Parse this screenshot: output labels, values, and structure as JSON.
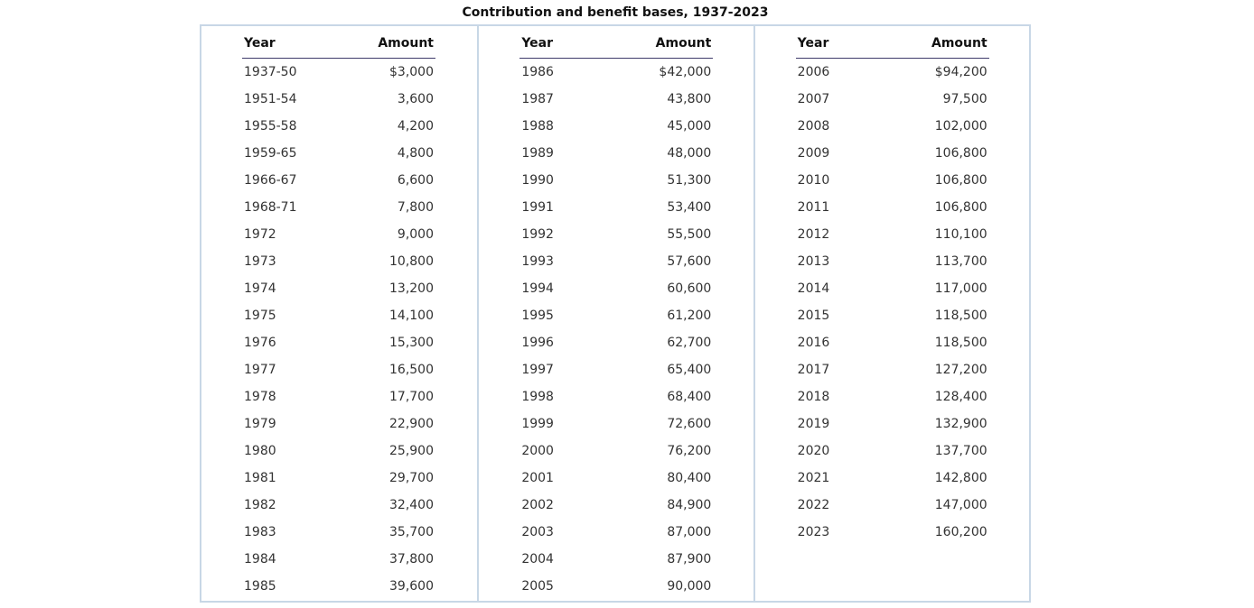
{
  "caption": "Contribution and benefit bases, 1937-2023",
  "headers": {
    "year": "Year",
    "amount": "Amount"
  },
  "panels": [
    {
      "rows": [
        {
          "year": "1937-50",
          "amount": "$3,000"
        },
        {
          "year": "1951-54",
          "amount": "3,600"
        },
        {
          "year": "1955-58",
          "amount": "4,200"
        },
        {
          "year": "1959-65",
          "amount": "4,800"
        },
        {
          "year": "1966-67",
          "amount": "6,600"
        },
        {
          "year": "1968-71",
          "amount": "7,800"
        },
        {
          "year": "1972",
          "amount": "9,000"
        },
        {
          "year": "1973",
          "amount": "10,800"
        },
        {
          "year": "1974",
          "amount": "13,200"
        },
        {
          "year": "1975",
          "amount": "14,100"
        },
        {
          "year": "1976",
          "amount": "15,300"
        },
        {
          "year": "1977",
          "amount": "16,500"
        },
        {
          "year": "1978",
          "amount": "17,700"
        },
        {
          "year": "1979",
          "amount": "22,900"
        },
        {
          "year": "1980",
          "amount": "25,900"
        },
        {
          "year": "1981",
          "amount": "29,700"
        },
        {
          "year": "1982",
          "amount": "32,400"
        },
        {
          "year": "1983",
          "amount": "35,700"
        },
        {
          "year": "1984",
          "amount": "37,800"
        },
        {
          "year": "1985",
          "amount": "39,600"
        }
      ]
    },
    {
      "rows": [
        {
          "year": "1986",
          "amount": "$42,000"
        },
        {
          "year": "1987",
          "amount": "43,800"
        },
        {
          "year": "1988",
          "amount": "45,000"
        },
        {
          "year": "1989",
          "amount": "48,000"
        },
        {
          "year": "1990",
          "amount": "51,300"
        },
        {
          "year": "1991",
          "amount": "53,400"
        },
        {
          "year": "1992",
          "amount": "55,500"
        },
        {
          "year": "1993",
          "amount": "57,600"
        },
        {
          "year": "1994",
          "amount": "60,600"
        },
        {
          "year": "1995",
          "amount": "61,200"
        },
        {
          "year": "1996",
          "amount": "62,700"
        },
        {
          "year": "1997",
          "amount": "65,400"
        },
        {
          "year": "1998",
          "amount": "68,400"
        },
        {
          "year": "1999",
          "amount": "72,600"
        },
        {
          "year": "2000",
          "amount": "76,200"
        },
        {
          "year": "2001",
          "amount": "80,400"
        },
        {
          "year": "2002",
          "amount": "84,900"
        },
        {
          "year": "2003",
          "amount": "87,000"
        },
        {
          "year": "2004",
          "amount": "87,900"
        },
        {
          "year": "2005",
          "amount": "90,000"
        }
      ]
    },
    {
      "rows": [
        {
          "year": "2006",
          "amount": "$94,200"
        },
        {
          "year": "2007",
          "amount": "97,500"
        },
        {
          "year": "2008",
          "amount": "102,000"
        },
        {
          "year": "2009",
          "amount": "106,800"
        },
        {
          "year": "2010",
          "amount": "106,800"
        },
        {
          "year": "2011",
          "amount": "106,800"
        },
        {
          "year": "2012",
          "amount": "110,100"
        },
        {
          "year": "2013",
          "amount": "113,700"
        },
        {
          "year": "2014",
          "amount": "117,000"
        },
        {
          "year": "2015",
          "amount": "118,500"
        },
        {
          "year": "2016",
          "amount": "118,500"
        },
        {
          "year": "2017",
          "amount": "127,200"
        },
        {
          "year": "2018",
          "amount": "128,400"
        },
        {
          "year": "2019",
          "amount": "132,900"
        },
        {
          "year": "2020",
          "amount": "137,700"
        },
        {
          "year": "2021",
          "amount": "142,800"
        },
        {
          "year": "2022",
          "amount": "147,000"
        },
        {
          "year": "2023",
          "amount": "160,200"
        }
      ]
    }
  ]
}
